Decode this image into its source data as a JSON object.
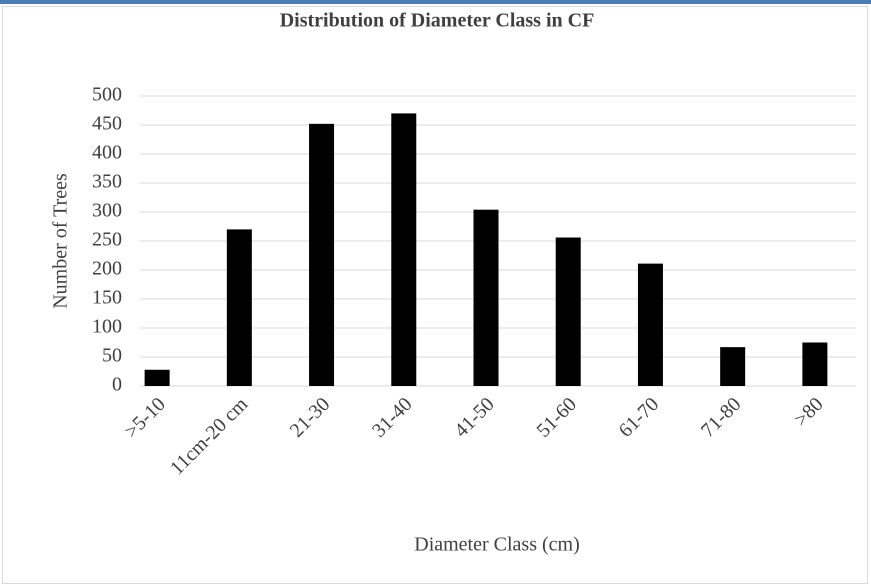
{
  "chart_data": {
    "type": "bar",
    "title": "Distribution of Diameter Class in CF",
    "x_label": "Diameter Class (cm)",
    "y_label": "Number of Trees",
    "categories": [
      ">5-10",
      "11cm-20 cm",
      "21-30",
      "31-40",
      "41-50",
      "51-60",
      "61-70",
      "71-80",
      ">80"
    ],
    "values": [
      28,
      270,
      452,
      470,
      304,
      256,
      211,
      67,
      75
    ],
    "color": "#000000",
    "ylim": [
      0,
      500
    ],
    "yticks": [
      0,
      50,
      100,
      150,
      200,
      250,
      300,
      350,
      400,
      450,
      500
    ],
    "grid": true
  }
}
